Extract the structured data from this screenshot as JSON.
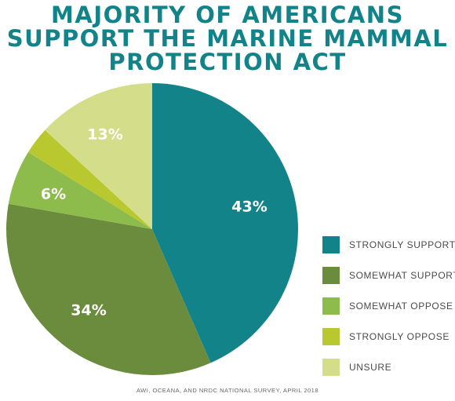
{
  "chart_data": {
    "type": "pie",
    "title_lines": [
      "MAJORITY OF AMERICANS",
      "SUPPORT THE MARINE MAMMAL",
      "PROTECTION ACT"
    ],
    "categories": [
      "STRONGLY SUPPORT",
      "SOMEWHAT SUPPORT",
      "SOMEWHAT OPPOSE",
      "STRONGLY OPPOSE",
      "UNSURE"
    ],
    "values": [
      43,
      34,
      6,
      3,
      13
    ],
    "data_labels": [
      "43%",
      "34%",
      "6%",
      "",
      "13%"
    ],
    "colors": [
      "#13838a",
      "#6a8c3c",
      "#8dbb4c",
      "#b9c82e",
      "#d4de8a"
    ],
    "legend_position": "right",
    "source": "AWI, OCEANA, AND NRDC NATIONAL SURVEY, APRIL 2018"
  }
}
